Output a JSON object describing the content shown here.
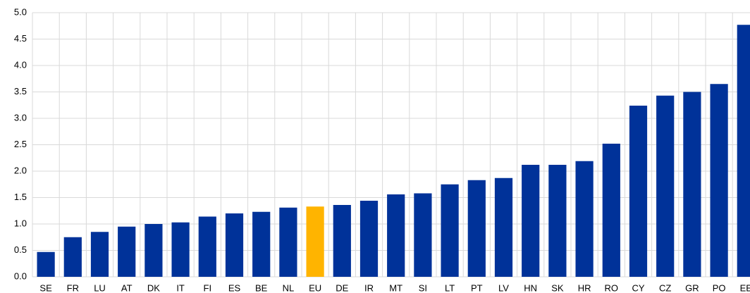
{
  "chart_data": {
    "type": "bar",
    "categories": [
      "SE",
      "FR",
      "LU",
      "AT",
      "DK",
      "IT",
      "FI",
      "ES",
      "BE",
      "NL",
      "EU",
      "DE",
      "IR",
      "MT",
      "SI",
      "LT",
      "PT",
      "LV",
      "HN",
      "SK",
      "HR",
      "RO",
      "CY",
      "CZ",
      "GR",
      "PO",
      "EE"
    ],
    "values": [
      0.47,
      0.75,
      0.85,
      0.95,
      1.0,
      1.03,
      1.14,
      1.2,
      1.23,
      1.31,
      1.33,
      1.36,
      1.44,
      1.56,
      1.58,
      1.75,
      1.83,
      1.87,
      2.12,
      2.12,
      2.19,
      2.52,
      3.24,
      3.43,
      3.5,
      3.65,
      4.77
    ],
    "colors": [
      "#003299",
      "#003299",
      "#003299",
      "#003299",
      "#003299",
      "#003299",
      "#003299",
      "#003299",
      "#003299",
      "#003299",
      "#ffb400",
      "#003299",
      "#003299",
      "#003299",
      "#003299",
      "#003299",
      "#003299",
      "#003299",
      "#003299",
      "#003299",
      "#003299",
      "#003299",
      "#003299",
      "#003299",
      "#003299",
      "#003299",
      "#003299"
    ],
    "ylim": [
      0,
      5
    ],
    "yticks": [
      {
        "value": 0,
        "label": "0.0"
      },
      0.5,
      {
        "value": 1,
        "label": "1.0"
      },
      1.5,
      {
        "value": 2,
        "label": "2.0"
      },
      2.5,
      {
        "value": 3,
        "label": "3.0"
      },
      3.5,
      {
        "value": 4,
        "label": "4.0"
      },
      4.5,
      {
        "value": 5,
        "label": "5.0"
      }
    ],
    "grid": true
  }
}
